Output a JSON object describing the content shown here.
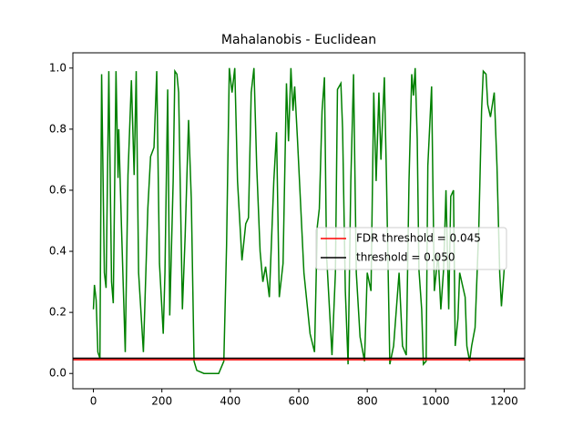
{
  "chart_data": {
    "type": "line",
    "title": "Mahalanobis - Euclidean",
    "x": [
      0,
      3,
      8,
      13,
      19,
      24,
      32,
      37,
      45,
      53,
      58,
      66,
      72,
      74,
      82,
      93,
      101,
      111,
      119,
      125,
      132,
      146,
      159,
      167,
      177,
      185,
      193,
      204,
      209,
      217,
      223,
      233,
      238,
      244,
      249,
      260,
      268,
      278,
      286,
      294,
      302,
      323,
      350,
      366,
      381,
      389,
      397,
      405,
      413,
      421,
      434,
      445,
      453,
      461,
      469,
      477,
      487,
      495,
      503,
      514,
      527,
      535,
      543,
      554,
      564,
      570,
      577,
      583,
      588,
      596,
      615,
      633,
      646,
      654,
      660,
      668,
      675,
      681,
      697,
      707,
      713,
      723,
      728,
      736,
      744,
      752,
      760,
      768,
      779,
      792,
      800,
      811,
      819,
      826,
      834,
      840,
      850,
      856,
      866,
      877,
      885,
      893,
      903,
      914,
      922,
      930,
      935,
      940,
      946,
      951,
      959,
      964,
      972,
      977,
      988,
      996,
      1007,
      1015,
      1023,
      1030,
      1038,
      1044,
      1052,
      1057,
      1065,
      1070,
      1086,
      1091,
      1099,
      1105,
      1115,
      1126,
      1134,
      1139,
      1147,
      1152,
      1160,
      1171,
      1179,
      1187,
      1192,
      1200
    ],
    "series": [
      {
        "color": "#008000",
        "values": [
          0.21,
          0.29,
          0.24,
          0.07,
          0.05,
          0.98,
          0.33,
          0.28,
          0.99,
          0.3,
          0.23,
          0.99,
          0.64,
          0.8,
          0.48,
          0.07,
          0.65,
          0.96,
          0.65,
          0.99,
          0.33,
          0.07,
          0.54,
          0.71,
          0.74,
          0.99,
          0.36,
          0.13,
          0.33,
          0.93,
          0.19,
          0.63,
          0.99,
          0.98,
          0.92,
          0.21,
          0.45,
          0.83,
          0.57,
          0.04,
          0.01,
          0.0,
          0.0,
          0.0,
          0.04,
          0.42,
          1.0,
          0.92,
          1.0,
          0.63,
          0.37,
          0.49,
          0.51,
          0.92,
          1.0,
          0.68,
          0.4,
          0.3,
          0.35,
          0.25,
          0.63,
          0.79,
          0.25,
          0.36,
          0.95,
          0.76,
          1.0,
          0.86,
          0.94,
          0.77,
          0.33,
          0.13,
          0.07,
          0.48,
          0.54,
          0.86,
          0.97,
          0.39,
          0.06,
          0.33,
          0.93,
          0.95,
          0.8,
          0.27,
          0.03,
          0.63,
          0.98,
          0.33,
          0.12,
          0.04,
          0.33,
          0.27,
          0.92,
          0.63,
          0.92,
          0.7,
          0.97,
          0.65,
          0.03,
          0.09,
          0.21,
          0.33,
          0.09,
          0.06,
          0.63,
          0.98,
          0.91,
          1.0,
          0.77,
          0.34,
          0.21,
          0.03,
          0.04,
          0.68,
          0.94,
          0.27,
          0.39,
          0.21,
          0.34,
          0.6,
          0.21,
          0.58,
          0.6,
          0.09,
          0.18,
          0.33,
          0.25,
          0.09,
          0.04,
          0.09,
          0.15,
          0.48,
          0.86,
          0.99,
          0.98,
          0.88,
          0.84,
          0.92,
          0.68,
          0.33,
          0.22,
          0.34
        ]
      }
    ],
    "hlines": [
      {
        "name": "FDR threshold = 0.045",
        "value": 0.045,
        "color": "#ff0000"
      },
      {
        "name": "threshold = 0.050",
        "value": 0.05,
        "color": "#000000"
      }
    ],
    "xlim": [
      -60,
      1260
    ],
    "xticks": [
      0,
      200,
      400,
      600,
      800,
      1000,
      1200
    ],
    "ylim": [
      -0.05,
      1.05
    ],
    "yticks": [
      {
        "value": 0,
        "label": "0.0"
      },
      {
        "value": 0.2,
        "label": "0.2"
      },
      {
        "value": 0.4,
        "label": "0.4"
      },
      {
        "value": 0.6,
        "label": "0.6"
      },
      {
        "value": 0.8,
        "label": "0.8"
      },
      {
        "value": 1.0,
        "label": "1.0"
      }
    ]
  }
}
